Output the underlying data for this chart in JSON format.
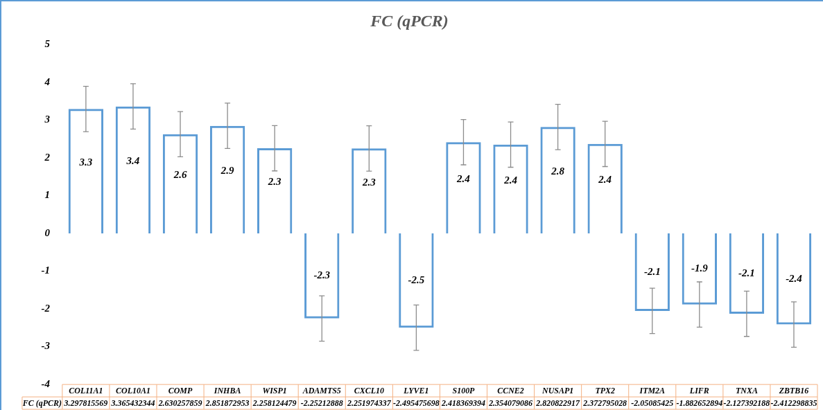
{
  "chart_data": {
    "type": "bar",
    "title": "FC (qPCR)",
    "categories": [
      "COL11A1",
      "COL10A1",
      "COMP",
      "INHBA",
      "WISP1",
      "ADAMTS5",
      "CXCL10",
      "LYVE1",
      "S100P",
      "CCNE2",
      "NUSAP1",
      "TPX2",
      "ITM2A",
      "LIFR",
      "TNXA",
      "ZBTB16"
    ],
    "series": [
      {
        "name": "FC (qPCR)",
        "color": "#5b9bd5",
        "values": [
          3.297815569,
          3.365432344,
          2.630257859,
          2.851872953,
          2.258124479,
          -2.25212888,
          2.251974337,
          -2.495475698,
          2.418369394,
          2.354079086,
          2.820822917,
          2.372795028,
          -2.05085425,
          -1.882652894,
          -2.127392188,
          -2.412298835
        ],
        "errors": [
          0.6,
          0.6,
          0.6,
          0.6,
          0.6,
          0.6,
          0.6,
          0.6,
          0.6,
          0.6,
          0.6,
          0.6,
          0.6,
          0.6,
          0.6,
          0.6
        ]
      }
    ],
    "annotations": [
      "3.3",
      "3.4",
      "2.6",
      "2.9",
      "2.3",
      "-2.3",
      "2.3",
      "-2.5",
      "2.4",
      "2.4",
      "2.8",
      "2.4",
      "-2.1",
      "-1.9",
      "-2.1",
      "-2.4"
    ],
    "ylim": [
      -4,
      5
    ],
    "yticks": [
      -4,
      -3,
      -2,
      -1,
      0,
      1,
      2,
      3,
      4,
      5
    ],
    "grid": false,
    "legend": false,
    "data_labels": true
  }
}
